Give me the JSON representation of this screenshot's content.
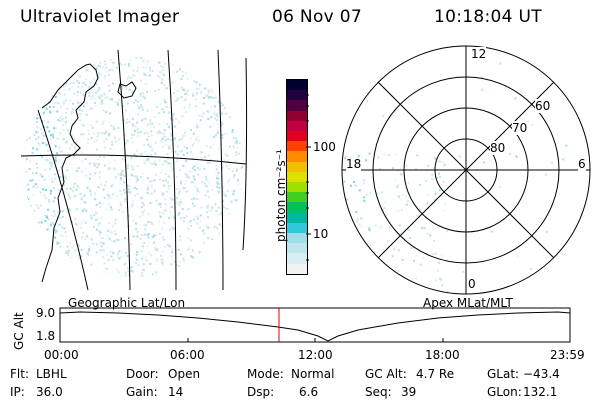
{
  "header": {
    "title": "Ultraviolet Imager",
    "date": "06 Nov 07",
    "time": "10:18:04 UT"
  },
  "colorbar": {
    "label": "photon cm⁻²s⁻¹",
    "ticks": [
      "100",
      "10"
    ],
    "colors": [
      "#f2f2f2",
      "#d8eef2",
      "#bfe6ee",
      "#9fdde8",
      "#2ec8d8",
      "#00b8a0",
      "#00c060",
      "#40d020",
      "#a0e000",
      "#e0e000",
      "#f0c000",
      "#ff8c00",
      "#ff4000",
      "#e00020",
      "#c00040",
      "#900030",
      "#500040",
      "#200040",
      "#000030"
    ]
  },
  "polar": {
    "mlt_labels": {
      "top": "12",
      "left": "18",
      "right": "6",
      "bottom": "0"
    },
    "mlat_labels": [
      "60",
      "70",
      "80"
    ]
  },
  "timeline": {
    "left_label": "Geographic Lat/Lon",
    "right_label": "Apex MLat/MLT",
    "y_axis_title": "GC Alt",
    "y_ticks": [
      "9.0",
      "1.8"
    ],
    "x_ticks": [
      "00:00",
      "06:00",
      "12:00",
      "18:00",
      "23:59"
    ],
    "current_time_marker": "10:18:04"
  },
  "info": {
    "flt_label": "Flt:",
    "flt_value": "LBHL",
    "ip_label": "IP:",
    "ip_value": "36.0",
    "door_label": "Door:",
    "door_value": "Open",
    "gain_label": "Gain:",
    "gain_value": "14",
    "mode_label": "Mode:",
    "mode_value": "Normal",
    "dsp_label": "Dsp:",
    "dsp_value": "6.6",
    "gcalt_label": "GC Alt:",
    "gcalt_value": "4.7 Re",
    "seq_label": "Seq:",
    "seq_value": "39",
    "glat_label": "GLat:",
    "glat_value": "−43.4",
    "glon_label": "GLon:",
    "glon_value": "132.1"
  }
}
